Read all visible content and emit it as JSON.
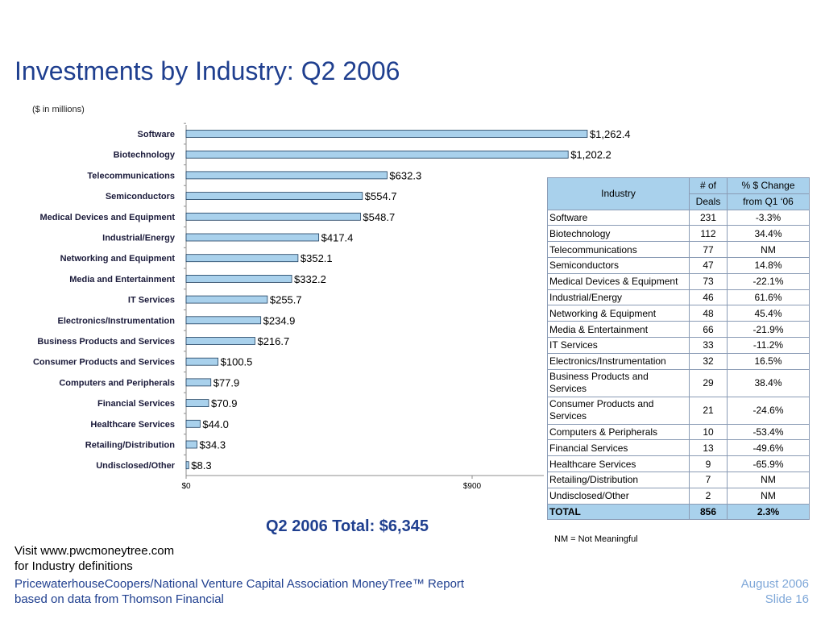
{
  "slide": {
    "title": "Investments by Industry: Q2 2006",
    "subtitle": "($ in millions)",
    "total": "Q2 2006 Total: $6,345",
    "visit_line1": "Visit www.pwcmoneytree.com",
    "visit_line2": "for Industry definitions",
    "footer_left_line1": "PricewaterhouseCoopers/National Venture Capital Association MoneyTree™ Report",
    "footer_left_line2": "based on data from Thomson Financial",
    "footer_right_line1": "August 2006",
    "footer_right_line2": "Slide 16",
    "nm_note": "NM = Not  Meaningful"
  },
  "colors": {
    "bar_fill": "#a9d1ec",
    "bar_stroke": "#1f3f5f",
    "title": "#1f3f8f",
    "header_fill": "#a9d1ec"
  },
  "chart_data": {
    "type": "bar",
    "orientation": "horizontal",
    "categories": [
      "Software",
      "Biotechnology",
      "Telecommunications",
      "Semiconductors",
      "Medical Devices and Equipment",
      "Industrial/Energy",
      "Networking and Equipment",
      "Media and Entertainment",
      "IT Services",
      "Electronics/Instrumentation",
      "Business Products and Services",
      "Consumer Products and Services",
      "Computers and Peripherals",
      "Financial Services",
      "Healthcare Services",
      "Retailing/Distribution",
      "Undisclosed/Other"
    ],
    "values": [
      1262.4,
      1202.2,
      632.3,
      554.7,
      548.7,
      417.4,
      352.1,
      332.2,
      255.7,
      234.9,
      216.7,
      100.5,
      77.9,
      70.9,
      44.0,
      34.3,
      8.3
    ],
    "value_labels": [
      "$1,262.4",
      "$1,202.2",
      "$632.3",
      "$554.7",
      "$548.7",
      "$417.4",
      "$352.1",
      "$332.2",
      "$255.7",
      "$234.9",
      "$216.7",
      "$100.5",
      "$77.9",
      "$70.9",
      "$44.0",
      "$34.3",
      "$8.3"
    ],
    "x_ticks": [
      0,
      900
    ],
    "x_tick_labels": [
      "$0",
      "$900"
    ],
    "xlim": [
      0,
      1350
    ],
    "title": "",
    "xlabel": "",
    "ylabel": ""
  },
  "table": {
    "header": {
      "industry": "Industry",
      "deals_1": "# of",
      "deals_2": "Deals",
      "change_1": "% $ Change",
      "change_2": "from Q1 ‘06"
    },
    "rows": [
      {
        "industry": "Software",
        "deals": "231",
        "change": "-3.3%"
      },
      {
        "industry": "Biotechnology",
        "deals": "112",
        "change": "34.4%"
      },
      {
        "industry": "Telecommunications",
        "deals": "77",
        "change": "NM"
      },
      {
        "industry": "Semiconductors",
        "deals": "47",
        "change": "14.8%"
      },
      {
        "industry": "Medical Devices & Equipment",
        "deals": "73",
        "change": "-22.1%"
      },
      {
        "industry": "Industrial/Energy",
        "deals": "46",
        "change": "61.6%"
      },
      {
        "industry": "Networking & Equipment",
        "deals": "48",
        "change": "45.4%"
      },
      {
        "industry": "Media & Entertainment",
        "deals": "66",
        "change": "-21.9%"
      },
      {
        "industry": "IT Services",
        "deals": "33",
        "change": "-11.2%"
      },
      {
        "industry": "Electronics/Instrumentation",
        "deals": "32",
        "change": "16.5%"
      },
      {
        "industry": "Business Products and Services",
        "deals": "29",
        "change": "38.4%"
      },
      {
        "industry": "Consumer Products and Services",
        "deals": "21",
        "change": "-24.6%"
      },
      {
        "industry": "Computers & Peripherals",
        "deals": "10",
        "change": "-53.4%"
      },
      {
        "industry": "Financial Services",
        "deals": "13",
        "change": "-49.6%"
      },
      {
        "industry": "Healthcare Services",
        "deals": "9",
        "change": "-65.9%"
      },
      {
        "industry": "Retailing/Distribution",
        "deals": "7",
        "change": "NM"
      },
      {
        "industry": "Undisclosed/Other",
        "deals": "2",
        "change": "NM"
      }
    ],
    "total": {
      "industry": "TOTAL",
      "deals": "856",
      "change": "2.3%"
    }
  }
}
